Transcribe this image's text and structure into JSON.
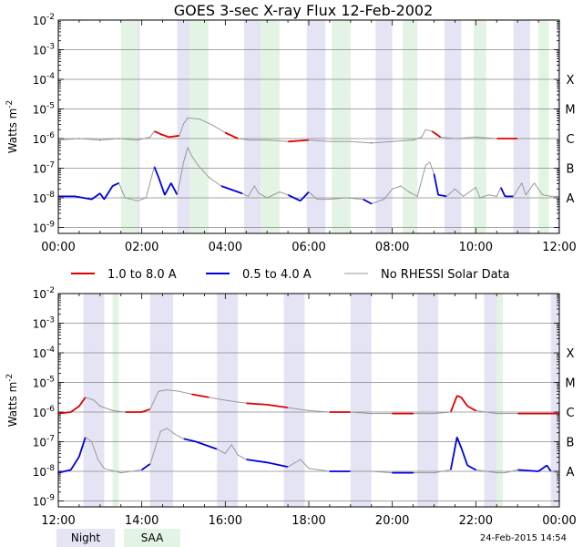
{
  "title": "GOES 3-sec X-ray Flux   12-Feb-2002",
  "footer_timestamp": "24-Feb-2015 14:54",
  "legend": {
    "long": "1.0 to 8.0 A",
    "short": "0.5 to 4.0 A",
    "nodata": "No RHESSI Solar Data",
    "night": "Night",
    "saa": "SAA"
  },
  "colors": {
    "long": "#e00000",
    "short": "#0000dd",
    "nodata": "#999999",
    "night": "#e4e4f4",
    "saa": "#e4f4e4",
    "grid": "#888888"
  },
  "chart_data": [
    {
      "type": "line",
      "panel": "top",
      "ylabel": "Watts m^-2",
      "x_ticks": [
        "00:00",
        "02:00",
        "04:00",
        "06:00",
        "08:00",
        "10:00",
        "12:00"
      ],
      "y_ticks": [
        "10^-9",
        "10^-8",
        "10^-7",
        "10^-6",
        "10^-5",
        "10^-4",
        "10^-3",
        "10^-2"
      ],
      "flare_classes": [
        "A",
        "B",
        "C",
        "M",
        "X"
      ],
      "ylim": [
        -9.2,
        -2
      ],
      "y_scale": "log",
      "grid": true,
      "night_hours": [
        [
          1.55,
          1.95
        ],
        [
          2.85,
          3.15
        ],
        [
          4.45,
          4.85
        ],
        [
          5.95,
          6.4
        ],
        [
          7.6,
          8.0
        ],
        [
          9.25,
          9.65
        ],
        [
          10.9,
          11.3
        ],
        [
          11.95,
          12.0
        ]
      ],
      "saa_hours": [
        [
          1.5,
          1.9
        ],
        [
          3.15,
          3.6
        ],
        [
          4.85,
          5.3
        ],
        [
          6.55,
          7.0
        ],
        [
          8.25,
          8.6
        ],
        [
          9.95,
          10.25
        ],
        [
          11.5,
          11.75
        ]
      ],
      "series": [
        {
          "name": "1.0 to 8.0 A",
          "points": [
            [
              0,
              -6.05
            ],
            [
              0.5,
              -6.0
            ],
            [
              1.0,
              -6.05
            ],
            [
              1.45,
              -6.0
            ],
            [
              1.9,
              -6.05
            ],
            [
              2.2,
              -5.95
            ],
            [
              2.3,
              -5.75
            ],
            [
              2.45,
              -5.85
            ],
            [
              2.65,
              -5.95
            ],
            [
              2.9,
              -5.9
            ],
            [
              3.0,
              -5.5
            ],
            [
              3.1,
              -5.3
            ],
            [
              3.4,
              -5.35
            ],
            [
              3.7,
              -5.55
            ],
            [
              4.0,
              -5.8
            ],
            [
              4.3,
              -6.0
            ],
            [
              4.6,
              -6.05
            ],
            [
              5.0,
              -6.05
            ],
            [
              5.5,
              -6.1
            ],
            [
              6.0,
              -6.05
            ],
            [
              6.5,
              -6.1
            ],
            [
              7.0,
              -6.1
            ],
            [
              7.5,
              -6.15
            ],
            [
              8.0,
              -6.1
            ],
            [
              8.5,
              -6.05
            ],
            [
              8.7,
              -5.95
            ],
            [
              8.8,
              -5.7
            ],
            [
              8.95,
              -5.75
            ],
            [
              9.15,
              -5.95
            ],
            [
              9.5,
              -6.0
            ],
            [
              10.0,
              -5.95
            ],
            [
              10.5,
              -6.0
            ],
            [
              11.0,
              -6.0
            ],
            [
              11.5,
              -6.0
            ],
            [
              12.0,
              -6.0
            ]
          ]
        },
        {
          "name": "0.5 to 4.0 A",
          "points": [
            [
              0,
              -7.95
            ],
            [
              0.4,
              -7.95
            ],
            [
              0.8,
              -8.05
            ],
            [
              1.0,
              -7.85
            ],
            [
              1.1,
              -8.05
            ],
            [
              1.3,
              -7.6
            ],
            [
              1.45,
              -7.5
            ],
            [
              1.6,
              -8.0
            ],
            [
              1.9,
              -8.1
            ],
            [
              2.1,
              -8.0
            ],
            [
              2.3,
              -6.95
            ],
            [
              2.4,
              -7.3
            ],
            [
              2.55,
              -7.9
            ],
            [
              2.7,
              -7.5
            ],
            [
              2.85,
              -7.9
            ],
            [
              3.0,
              -6.8
            ],
            [
              3.1,
              -6.3
            ],
            [
              3.2,
              -6.6
            ],
            [
              3.35,
              -6.9
            ],
            [
              3.6,
              -7.3
            ],
            [
              3.9,
              -7.6
            ],
            [
              4.2,
              -7.75
            ],
            [
              4.4,
              -7.85
            ],
            [
              4.55,
              -7.95
            ],
            [
              4.7,
              -7.6
            ],
            [
              4.8,
              -7.85
            ],
            [
              5.0,
              -8.0
            ],
            [
              5.3,
              -7.8
            ],
            [
              5.5,
              -7.9
            ],
            [
              5.8,
              -8.1
            ],
            [
              6.0,
              -7.8
            ],
            [
              6.2,
              -8.05
            ],
            [
              6.5,
              -8.05
            ],
            [
              6.9,
              -8.0
            ],
            [
              7.3,
              -8.05
            ],
            [
              7.5,
              -8.2
            ],
            [
              7.8,
              -8.05
            ],
            [
              8.0,
              -7.7
            ],
            [
              8.2,
              -7.6
            ],
            [
              8.4,
              -7.8
            ],
            [
              8.6,
              -7.95
            ],
            [
              8.8,
              -6.9
            ],
            [
              8.9,
              -6.8
            ],
            [
              9.0,
              -7.2
            ],
            [
              9.1,
              -7.9
            ],
            [
              9.3,
              -7.95
            ],
            [
              9.5,
              -7.7
            ],
            [
              9.7,
              -7.95
            ],
            [
              10.0,
              -7.65
            ],
            [
              10.1,
              -8.0
            ],
            [
              10.3,
              -7.9
            ],
            [
              10.5,
              -7.95
            ],
            [
              10.6,
              -7.65
            ],
            [
              10.7,
              -7.95
            ],
            [
              10.9,
              -7.95
            ],
            [
              11.1,
              -7.5
            ],
            [
              11.2,
              -7.9
            ],
            [
              11.4,
              -7.5
            ],
            [
              11.6,
              -7.9
            ],
            [
              11.8,
              -7.95
            ],
            [
              12.0,
              -7.95
            ]
          ]
        }
      ],
      "time_offset_hours": 0
    },
    {
      "type": "line",
      "panel": "bottom",
      "ylabel": "Watts m^-2",
      "x_ticks": [
        "12:00",
        "14:00",
        "16:00",
        "18:00",
        "20:00",
        "22:00",
        "00:00"
      ],
      "y_ticks": [
        "10^-9",
        "10^-8",
        "10^-7",
        "10^-6",
        "10^-5",
        "10^-4",
        "10^-3",
        "10^-2"
      ],
      "flare_classes": [
        "A",
        "B",
        "C",
        "M",
        "X"
      ],
      "ylim": [
        -9.2,
        -2
      ],
      "y_scale": "log",
      "grid": true,
      "night_hours": [
        [
          12.6,
          13.1
        ],
        [
          14.2,
          14.75
        ],
        [
          15.8,
          16.3
        ],
        [
          17.4,
          17.9
        ],
        [
          19.0,
          19.5
        ],
        [
          20.6,
          21.1
        ],
        [
          22.2,
          22.6
        ],
        [
          23.8,
          24.0
        ]
      ],
      "saa_hours": [
        [
          13.3,
          13.45
        ],
        [
          22.5,
          22.65
        ]
      ],
      "series": [
        {
          "name": "1.0 to 8.0 A",
          "points": [
            [
              12.0,
              -6.05
            ],
            [
              12.3,
              -6.0
            ],
            [
              12.5,
              -5.8
            ],
            [
              12.65,
              -5.5
            ],
            [
              12.85,
              -5.6
            ],
            [
              13.0,
              -5.8
            ],
            [
              13.3,
              -5.95
            ],
            [
              13.6,
              -6.0
            ],
            [
              14.0,
              -6.0
            ],
            [
              14.2,
              -5.9
            ],
            [
              14.4,
              -5.3
            ],
            [
              14.6,
              -5.25
            ],
            [
              14.9,
              -5.3
            ],
            [
              15.2,
              -5.4
            ],
            [
              15.6,
              -5.5
            ],
            [
              16.0,
              -5.6
            ],
            [
              16.5,
              -5.7
            ],
            [
              17.0,
              -5.75
            ],
            [
              17.5,
              -5.85
            ],
            [
              18.0,
              -5.95
            ],
            [
              18.5,
              -6.0
            ],
            [
              19.0,
              -6.0
            ],
            [
              19.5,
              -6.05
            ],
            [
              20.0,
              -6.05
            ],
            [
              20.5,
              -6.05
            ],
            [
              21.0,
              -6.05
            ],
            [
              21.4,
              -6.0
            ],
            [
              21.55,
              -5.45
            ],
            [
              21.65,
              -5.5
            ],
            [
              21.8,
              -5.8
            ],
            [
              22.0,
              -5.95
            ],
            [
              22.5,
              -6.05
            ],
            [
              23.0,
              -6.05
            ],
            [
              23.5,
              -6.05
            ],
            [
              24.0,
              -6.05
            ]
          ]
        },
        {
          "name": "0.5 to 4.0 A",
          "points": [
            [
              12.0,
              -8.05
            ],
            [
              12.3,
              -7.95
            ],
            [
              12.5,
              -7.5
            ],
            [
              12.65,
              -6.85
            ],
            [
              12.8,
              -7.0
            ],
            [
              12.95,
              -7.6
            ],
            [
              13.1,
              -7.9
            ],
            [
              13.5,
              -8.05
            ],
            [
              14.0,
              -7.95
            ],
            [
              14.2,
              -7.75
            ],
            [
              14.45,
              -6.65
            ],
            [
              14.6,
              -6.55
            ],
            [
              14.8,
              -6.75
            ],
            [
              15.0,
              -6.9
            ],
            [
              15.3,
              -7.0
            ],
            [
              15.6,
              -7.15
            ],
            [
              15.8,
              -7.25
            ],
            [
              16.0,
              -7.4
            ],
            [
              16.15,
              -7.1
            ],
            [
              16.3,
              -7.45
            ],
            [
              16.5,
              -7.6
            ],
            [
              17.0,
              -7.7
            ],
            [
              17.5,
              -7.85
            ],
            [
              17.8,
              -7.6
            ],
            [
              18.0,
              -7.9
            ],
            [
              18.5,
              -8.0
            ],
            [
              19.0,
              -8.0
            ],
            [
              19.5,
              -8.0
            ],
            [
              20.0,
              -8.05
            ],
            [
              20.5,
              -8.05
            ],
            [
              21.0,
              -8.05
            ],
            [
              21.4,
              -7.95
            ],
            [
              21.55,
              -6.85
            ],
            [
              21.65,
              -7.2
            ],
            [
              21.8,
              -7.8
            ],
            [
              22.0,
              -7.95
            ],
            [
              22.5,
              -8.05
            ],
            [
              22.7,
              -8.05
            ],
            [
              23.0,
              -7.95
            ],
            [
              23.5,
              -8.0
            ],
            [
              23.7,
              -7.8
            ],
            [
              23.8,
              -8.0
            ],
            [
              24.0,
              -8.05
            ]
          ]
        }
      ],
      "time_offset_hours": 12
    }
  ]
}
